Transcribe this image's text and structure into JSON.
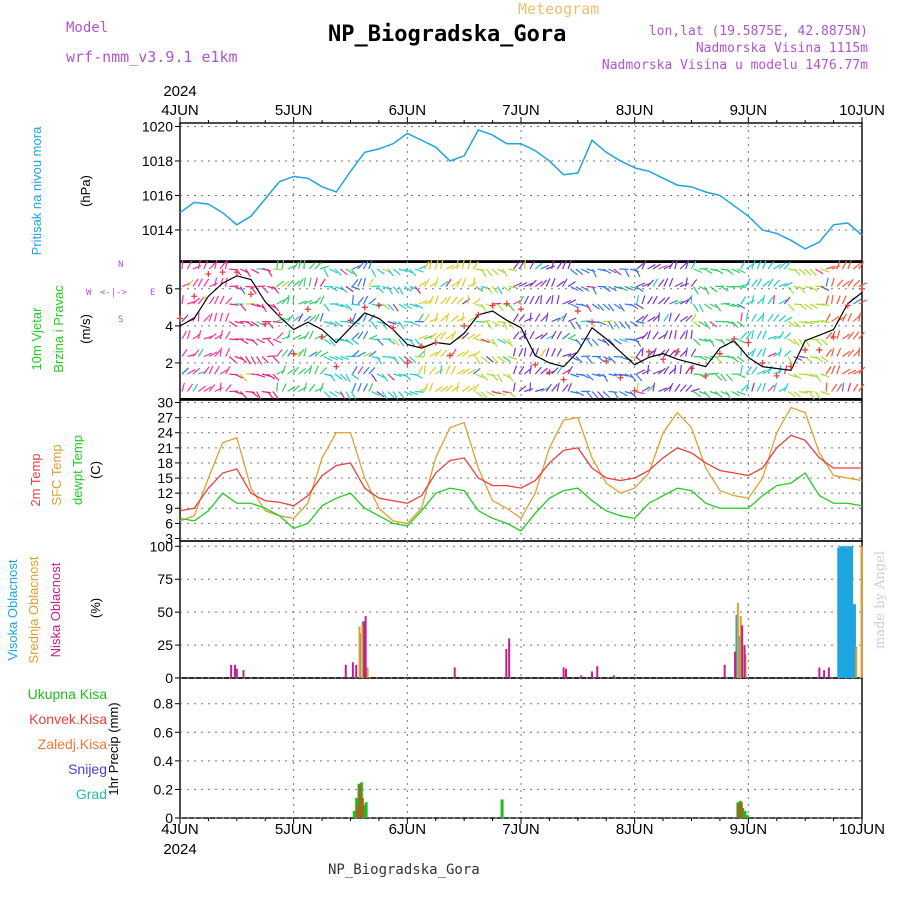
{
  "header": {
    "model_label": "Model",
    "model_name": "wrf-nmm_v3.9.1 e1km",
    "title": "NP_Biogradska_Gora",
    "meteogram": "Meteogram",
    "lonlat": "lon,lat (19.5875E, 42.8875N)",
    "elevation": "Nadmorska Visina 1115m",
    "model_elevation": "Nadmorska Visina u modelu 1476.77m",
    "footer_station": "NP_Biogradska_Gora",
    "credit": "made by Angel"
  },
  "colors": {
    "pressure": "#1ea5e0",
    "temp2m": "#e84040",
    "sfc": "#e0a030",
    "dewpt": "#22cc22",
    "high_cloud": "#1ea5e0",
    "mid_cloud": "#e0a030",
    "low_cloud": "#c0208a",
    "total_precip": "#22bb22",
    "conv_precip": "#e84040",
    "frozen_precip": "#f07830",
    "snow": "#4444dd",
    "graupel": "#22bbaa"
  },
  "chart_data": [
    {
      "type": "line",
      "panel": "pressure",
      "ylabel": [
        "Pritisak na nivou mora",
        "(hPa)"
      ],
      "x_ticks": [
        "4JUN",
        "5JUN",
        "6JUN",
        "7JUN",
        "8JUN",
        "9JUN",
        "10JUN"
      ],
      "x_year": "2024",
      "ylim": [
        1012.2,
        1020.2
      ],
      "yticks": [
        "1014",
        "1016",
        "1018",
        "1020"
      ],
      "x_hours": [
        0,
        3,
        6,
        9,
        12,
        15,
        18,
        21,
        24,
        27,
        30,
        33,
        36,
        39,
        42,
        45,
        48,
        51,
        54,
        57,
        60,
        63,
        66,
        69,
        72,
        75,
        78,
        81,
        84,
        87,
        90,
        93,
        96,
        99,
        102,
        105,
        108,
        111,
        114,
        117,
        120,
        123,
        126,
        129,
        132,
        135,
        138,
        141,
        144
      ],
      "series": [
        {
          "values": [
            1015.0,
            1015.6,
            1015.5,
            1015.0,
            1014.3,
            1014.8,
            1015.8,
            1016.8,
            1017.1,
            1017.0,
            1016.5,
            1016.2,
            1017.4,
            1018.5,
            1018.7,
            1019.0,
            1019.6,
            1019.2,
            1018.8,
            1018.0,
            1018.3,
            1019.8,
            1019.5,
            1019.0,
            1019.0,
            1018.6,
            1018.0,
            1017.2,
            1017.3,
            1019.2,
            1018.5,
            1018.0,
            1017.6,
            1017.4,
            1017.0,
            1016.6,
            1016.5,
            1016.2,
            1016.0,
            1015.4,
            1014.8,
            1014.0,
            1013.8,
            1013.4,
            1012.9,
            1013.3,
            1014.3,
            1014.4,
            1013.7
          ]
        }
      ]
    },
    {
      "type": "line",
      "panel": "wind",
      "ylabel": [
        "10m Vjetar",
        "Brzina i Pravac",
        "(m/s)"
      ],
      "compass": [
        "N",
        "W",
        "E",
        "S"
      ],
      "ylim": [
        0,
        7.5
      ],
      "yticks": [
        "2",
        "4",
        "6"
      ],
      "x_hours": [
        0,
        3,
        6,
        9,
        12,
        15,
        18,
        21,
        24,
        27,
        30,
        33,
        36,
        39,
        42,
        45,
        48,
        51,
        54,
        57,
        60,
        63,
        66,
        69,
        72,
        75,
        78,
        81,
        84,
        87,
        90,
        93,
        96,
        99,
        102,
        105,
        108,
        111,
        114,
        117,
        120,
        123,
        126,
        129,
        132,
        135,
        138,
        141,
        144
      ],
      "series": [
        {
          "values": [
            4.0,
            4.4,
            5.6,
            6.3,
            6.7,
            6.5,
            5.3,
            4.5,
            3.8,
            4.2,
            3.8,
            3.1,
            3.9,
            4.7,
            4.4,
            3.8,
            3.0,
            2.8,
            3.1,
            3.0,
            3.6,
            4.6,
            4.8,
            4.3,
            3.9,
            2.4,
            2.0,
            1.8,
            2.6,
            3.9,
            3.3,
            2.6,
            1.9,
            2.3,
            2.5,
            2.2,
            2.0,
            1.8,
            2.8,
            3.2,
            2.3,
            1.8,
            1.7,
            1.6,
            3.2,
            3.5,
            3.8,
            5.2,
            5.8
          ]
        }
      ],
      "gust": [
        4.4,
        5.6,
        6.8,
        6.9,
        6.9,
        5.7,
        4.1,
        4.6,
        2.5,
        4.9,
        3.4,
        1.8,
        4.3,
        5.0,
        5.1,
        3.9,
        2.0,
        2.9,
        3.1,
        2.4,
        4.0,
        4.6,
        5.1,
        5.2,
        4.9,
        1.9,
        1.5,
        1.1,
        4.8,
        4.2,
        2.1,
        1.2,
        0.5,
        2.6,
        2.2,
        2.6,
        1.7,
        1.3,
        2.5,
        3.3,
        3.1,
        2.0,
        1.3,
        1.8,
        2.7,
        2.7,
        3.4,
        5.1,
        6.0
      ]
    },
    {
      "type": "line",
      "panel": "temperature",
      "ylabel": [
        "2m Temp",
        "SFC Temp",
        "dewpt Temp",
        "(C)"
      ],
      "ylim": [
        2.5,
        30.5
      ],
      "yticks": [
        "3",
        "6",
        "9",
        "12",
        "15",
        "18",
        "21",
        "24",
        "27",
        "30"
      ],
      "x_hours": [
        0,
        3,
        6,
        9,
        12,
        15,
        18,
        21,
        24,
        27,
        30,
        33,
        36,
        39,
        42,
        45,
        48,
        51,
        54,
        57,
        60,
        63,
        66,
        69,
        72,
        75,
        78,
        81,
        84,
        87,
        90,
        93,
        96,
        99,
        102,
        105,
        108,
        111,
        114,
        117,
        120,
        123,
        126,
        129,
        132,
        135,
        138,
        141,
        144
      ],
      "series": [
        {
          "name": "2m Temp",
          "values": [
            8.5,
            9.0,
            13.0,
            16.0,
            16.8,
            12.0,
            10.5,
            10.2,
            9.5,
            11.5,
            15.5,
            17.5,
            18.0,
            13.0,
            11.0,
            10.5,
            10.0,
            11.5,
            16.0,
            18.5,
            19.0,
            15.0,
            13.5,
            13.5,
            13.0,
            14.5,
            18.0,
            20.5,
            21.0,
            17.0,
            15.0,
            14.5,
            15.0,
            16.5,
            19.0,
            21.0,
            20.0,
            18.0,
            16.5,
            16.0,
            15.5,
            17.0,
            21.0,
            23.5,
            22.5,
            19.0,
            17.0,
            17.0,
            17.0
          ]
        },
        {
          "name": "SFC Temp",
          "values": [
            6.5,
            7.5,
            15.0,
            22.0,
            23.0,
            13.0,
            8.5,
            7.5,
            7.0,
            10.0,
            19.0,
            24.0,
            24.0,
            15.0,
            9.0,
            6.5,
            6.0,
            9.0,
            19.0,
            25.0,
            26.0,
            17.0,
            10.5,
            9.0,
            7.0,
            12.0,
            21.0,
            26.5,
            27.0,
            19.0,
            14.0,
            12.0,
            13.0,
            16.0,
            24.0,
            28.0,
            25.0,
            17.0,
            12.5,
            11.5,
            11.0,
            15.0,
            24.0,
            29.0,
            28.0,
            20.0,
            15.5,
            15.0,
            14.5
          ]
        },
        {
          "name": "dewpt Temp",
          "values": [
            7.0,
            6.5,
            8.5,
            12.0,
            10.0,
            10.0,
            9.0,
            7.5,
            5.0,
            6.0,
            9.5,
            11.0,
            12.0,
            9.0,
            7.5,
            6.0,
            5.5,
            8.5,
            12.0,
            13.0,
            12.5,
            8.5,
            7.0,
            6.0,
            4.5,
            8.0,
            11.0,
            12.5,
            13.0,
            10.5,
            8.5,
            7.5,
            7.0,
            10.0,
            11.5,
            13.0,
            12.5,
            10.0,
            9.0,
            9.0,
            9.0,
            11.5,
            13.5,
            14.0,
            16.0,
            11.5,
            10.0,
            10.0,
            9.5
          ]
        }
      ]
    },
    {
      "type": "bar",
      "panel": "clouds",
      "ylabel": [
        "Visoka Oblacnost",
        "Srednja Oblacnost",
        "Niska Oblacnost",
        "(%)"
      ],
      "ylim": [
        0,
        104
      ],
      "yticks": [
        "0",
        "25",
        "50",
        "75",
        "100"
      ],
      "series": [
        {
          "name": "Visoka Oblacnost",
          "bars": [
            [
              37.0,
              1
            ],
            [
              38.0,
              34
            ],
            [
              38.6,
              43
            ],
            [
              117.5,
              48
            ],
            [
              118.0,
              32
            ],
            [
              139.2,
              99
            ],
            [
              139.7,
              100
            ],
            [
              140.2,
              100
            ],
            [
              140.7,
              99
            ],
            [
              141.2,
              100
            ],
            [
              141.7,
              100
            ],
            [
              142.3,
              56
            ]
          ]
        },
        {
          "name": "Srednja Oblacnost",
          "bars": [
            [
              37.9,
              39
            ],
            [
              38.5,
              40
            ],
            [
              39.6,
              8
            ],
            [
              117.8,
              57
            ],
            [
              118.4,
              47
            ],
            [
              119.4,
              18
            ],
            [
              142.8,
              24
            ],
            [
              143.9,
              100
            ]
          ]
        },
        {
          "name": "Niska Oblacnost",
          "bars": [
            [
              10.8,
              10
            ],
            [
              11.6,
              10
            ],
            [
              12.0,
              7
            ],
            [
              13.4,
              6
            ],
            [
              35.0,
              10
            ],
            [
              36.5,
              12
            ],
            [
              37.2,
              10
            ],
            [
              38.9,
              43
            ],
            [
              39.2,
              47
            ],
            [
              58.0,
              8
            ],
            [
              68.9,
              22
            ],
            [
              69.5,
              30
            ],
            [
              81.0,
              8
            ],
            [
              81.5,
              7
            ],
            [
              84.7,
              2
            ],
            [
              87.0,
              5
            ],
            [
              88.1,
              9
            ],
            [
              91.6,
              2
            ],
            [
              115.0,
              10
            ],
            [
              117.2,
              20
            ],
            [
              118.7,
              40
            ],
            [
              119.2,
              25
            ],
            [
              135.0,
              8
            ],
            [
              136.0,
              6
            ],
            [
              137.0,
              8
            ]
          ]
        }
      ]
    },
    {
      "type": "bar",
      "panel": "precip",
      "ylabel": [
        "1hr Precip (mm)"
      ],
      "legend": [
        "Ukupna Kisa",
        "Konvek.Kisa",
        "Zaledj.Kisa",
        "Snijeg",
        "Grad"
      ],
      "ylim": [
        0,
        0.98
      ],
      "yticks": [
        "0",
        "0.2",
        "0.4",
        "0.6",
        "0.8"
      ],
      "series": [
        {
          "name": "Ukupna Kisa",
          "bars": [
            [
              36.8,
              0.05
            ],
            [
              37.3,
              0.14
            ],
            [
              37.8,
              0.24
            ],
            [
              38.3,
              0.25
            ],
            [
              38.8,
              0.09
            ],
            [
              39.3,
              0.11
            ],
            [
              68.0,
              0.13
            ],
            [
              117.8,
              0.11
            ],
            [
              118.3,
              0.12
            ],
            [
              118.8,
              0.07
            ],
            [
              119.3,
              0.05
            ],
            [
              119.8,
              0.02
            ]
          ]
        },
        {
          "name": "Konvek.Kisa",
          "bars": [
            [
              37.5,
              0.08
            ],
            [
              38.0,
              0.23
            ],
            [
              38.5,
              0.14
            ],
            [
              118.0,
              0.1
            ],
            [
              118.5,
              0.11
            ]
          ]
        }
      ]
    }
  ]
}
